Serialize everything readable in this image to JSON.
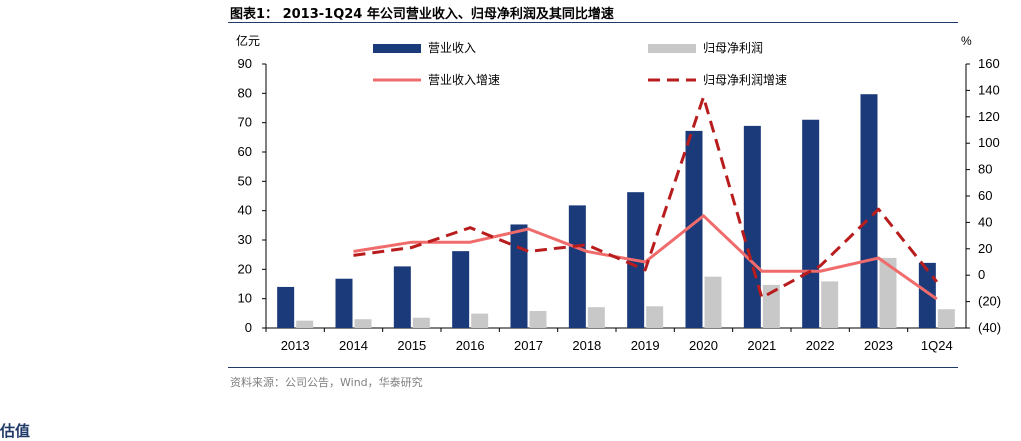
{
  "title": "图表1： 2013-1Q24 年公司营业收入、归母净利润及其同比增速",
  "source": "资料来源：公司公告，Wind，华泰研究",
  "section_heading": "估值",
  "colors": {
    "revenue": "#1b3a7a",
    "net_profit": "#c8c8c8",
    "revenue_growth": "#f06b6b",
    "profit_growth": "#b81c1c",
    "rule": "#1f3a68"
  },
  "chart_data": {
    "type": "bar",
    "categories": [
      "2013",
      "2014",
      "2015",
      "2016",
      "2017",
      "2018",
      "2019",
      "2020",
      "2021",
      "2022",
      "2023",
      "1Q24"
    ],
    "left_axis_unit": "亿元",
    "right_axis_unit": "%",
    "left_ylim": [
      0,
      90
    ],
    "left_ticks": [
      "0",
      "10",
      "20",
      "30",
      "40",
      "50",
      "60",
      "70",
      "80",
      "90"
    ],
    "right_ylim": [
      -40,
      160
    ],
    "right_ticks": [
      "(40)",
      "(20)",
      "0",
      "20",
      "40",
      "60",
      "80",
      "100",
      "120",
      "140",
      "160"
    ],
    "legend_position": "top",
    "series": [
      {
        "name": "营业收入",
        "kind": "bar",
        "axis": "left",
        "values": [
          14,
          16.8,
          21,
          26.2,
          35.3,
          41.8,
          46.3,
          67.2,
          68.9,
          71,
          79.7,
          22.2
        ]
      },
      {
        "name": "归母净利润",
        "kind": "bar",
        "axis": "left",
        "values": [
          2.5,
          3,
          3.5,
          4.9,
          5.8,
          7.1,
          7.4,
          17.5,
          14.7,
          15.9,
          23.9,
          6.4
        ]
      },
      {
        "name": "营业收入增速",
        "kind": "line",
        "style": "solid",
        "axis": "right",
        "values": [
          null,
          18,
          25,
          25,
          35,
          18,
          10,
          45,
          3,
          3,
          13,
          -18
        ]
      },
      {
        "name": "归母净利润增速",
        "kind": "line",
        "style": "dashed",
        "axis": "right",
        "values": [
          null,
          15,
          21,
          36,
          18,
          23,
          4,
          135,
          -17,
          7,
          50,
          -5
        ]
      }
    ]
  }
}
